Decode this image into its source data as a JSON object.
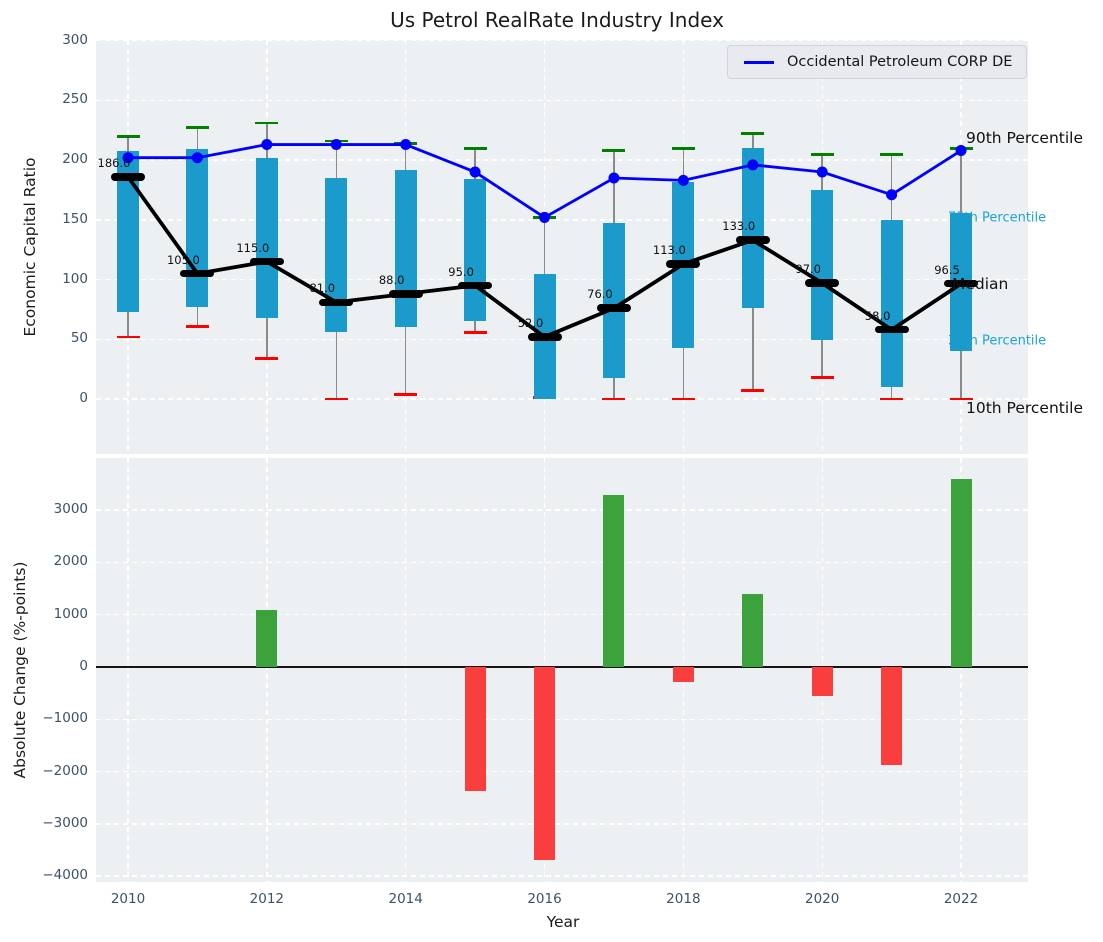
{
  "title": "Us Petrol RealRate Industry Index",
  "legend": {
    "series_label": "Occidental Petroleum CORP DE"
  },
  "colors": {
    "box": "#1a9bcb",
    "company_line": "#0000ff",
    "median": "#000000",
    "p90_cap": "#008000",
    "p10_cap": "#ff0000",
    "bar_positive": "#3ca23c",
    "bar_negative": "#fa3d3d",
    "percentile_label_accent": "#1ba2d7",
    "axes_background": "#edf0f2"
  },
  "top_chart": {
    "ylabel": "Economic Capital Ratio",
    "yticks": [
      300,
      250,
      200,
      150,
      100,
      50,
      0
    ],
    "ytick_labels": [
      "300",
      "250",
      "200",
      "150",
      "100",
      "50",
      "0"
    ],
    "right_labels": [
      {
        "text": "90th Percentile",
        "emphasis": "black-large"
      },
      {
        "text": "75th Percentile",
        "emphasis": "accent-small"
      },
      {
        "text": "Median",
        "emphasis": "black-large"
      },
      {
        "text": "25th Percentile",
        "emphasis": "accent-small"
      },
      {
        "text": "10th Percentile",
        "emphasis": "black-large"
      }
    ]
  },
  "bottom_chart": {
    "ylabel": "Absolute Change (%-points)",
    "xlabel": "Year",
    "yticks": [
      3000,
      2000,
      1000,
      0,
      -1000,
      -2000,
      -3000,
      -4000
    ],
    "ytick_labels": [
      "3000",
      "2000",
      "1000",
      "0",
      "−1000",
      "−2000",
      "−3000",
      "−4000"
    ],
    "xticks": [
      2010,
      2012,
      2014,
      2016,
      2018,
      2020,
      2022
    ],
    "xtick_labels": [
      "2010",
      "2012",
      "2014",
      "2016",
      "2018",
      "2020",
      "2022"
    ]
  },
  "chart_data": [
    {
      "type": "boxplot-line",
      "title": "Us Petrol RealRate Industry Index",
      "ylabel": "Economic Capital Ratio",
      "ylim": [
        -46,
        300.5
      ],
      "grid": true,
      "legend_position": "upper right",
      "years": [
        2010,
        2011,
        2012,
        2013,
        2014,
        2015,
        2016,
        2017,
        2018,
        2019,
        2020,
        2021,
        2022
      ],
      "series": [
        {
          "name": "90th Percentile",
          "role": "whisker-top-cap",
          "values": [
            220,
            227,
            231,
            216,
            214,
            210,
            152,
            208,
            210,
            222,
            205,
            205,
            210
          ]
        },
        {
          "name": "75th Percentile",
          "role": "box-top",
          "values": [
            208,
            209,
            202,
            185,
            192,
            184,
            105,
            147,
            182,
            210,
            175,
            150,
            156
          ]
        },
        {
          "name": "Median",
          "role": "median-line",
          "values": [
            186,
            105,
            115,
            81,
            88,
            95,
            52,
            76,
            113,
            133,
            97,
            58,
            96.5
          ],
          "labels": [
            "186.0",
            "105.0",
            "115.0",
            "81.0",
            "88.0",
            "95.0",
            "52.0",
            "76.0",
            "113.0",
            "133.0",
            "97.0",
            "58.0",
            "96.5"
          ]
        },
        {
          "name": "25th Percentile",
          "role": "box-bottom",
          "values": [
            73,
            77,
            68,
            56,
            60,
            65,
            0,
            18,
            43,
            76,
            49,
            10,
            40
          ]
        },
        {
          "name": "10th Percentile",
          "role": "whisker-bottom-cap",
          "values": [
            52,
            61,
            34,
            0,
            4,
            56,
            1,
            0,
            0,
            7,
            18,
            0,
            0
          ]
        },
        {
          "name": "Occidental Petroleum CORP DE",
          "role": "company-line-markers",
          "values": [
            202,
            202,
            213,
            213,
            213,
            190,
            152,
            185,
            183,
            196,
            190,
            171,
            208
          ]
        }
      ]
    },
    {
      "type": "bar",
      "ylabel": "Absolute Change (%-points)",
      "xlabel": "Year",
      "ylim": [
        -4111,
        3996
      ],
      "grid": true,
      "zero_line": true,
      "years": [
        2010,
        2011,
        2012,
        2013,
        2014,
        2015,
        2016,
        2017,
        2018,
        2019,
        2020,
        2021,
        2022
      ],
      "values": [
        null,
        null,
        1090,
        null,
        null,
        -2380,
        -3690,
        3290,
        -280,
        1390,
        -560,
        -1870,
        3590
      ]
    }
  ]
}
